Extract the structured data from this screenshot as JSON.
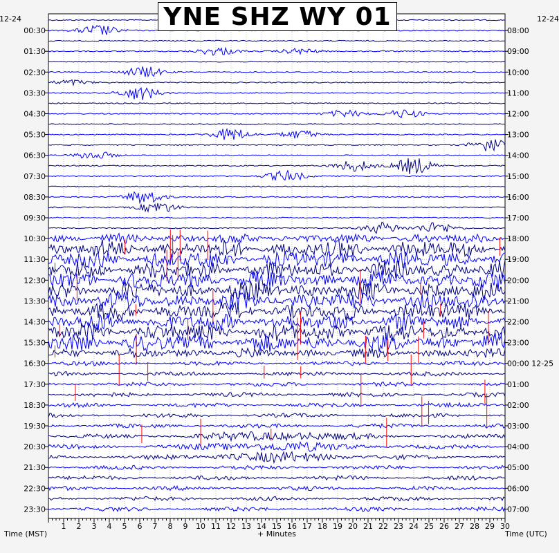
{
  "chart_data": {
    "type": "line",
    "title": "YNE SHZ WY 01",
    "xlabel": "+ Minutes",
    "left_axis_label": "Time (MST)",
    "right_axis_label": "Time (UTC)",
    "x_ticks": [
      "1",
      "2",
      "3",
      "4",
      "5",
      "6",
      "7",
      "8",
      "9",
      "10",
      "11",
      "12",
      "13",
      "14",
      "15",
      "16",
      "17",
      "18",
      "19",
      "20",
      "21",
      "22",
      "23",
      "24",
      "25",
      "26",
      "27",
      "28",
      "29",
      "30"
    ],
    "xlim": [
      0,
      30
    ],
    "left_date": "12-24",
    "right_date": "12-24",
    "left_ticks": [
      "00:30",
      "01:30",
      "02:30",
      "03:30",
      "04:30",
      "05:30",
      "06:30",
      "07:30",
      "08:30",
      "09:30",
      "10:30",
      "11:30",
      "12:30",
      "13:30",
      "14:30",
      "15:30",
      "16:30",
      "17:30",
      "18:30",
      "19:30",
      "20:30",
      "21:30",
      "22:30",
      "23:30"
    ],
    "right_ticks": [
      "08:00",
      "09:00",
      "10:00",
      "11:00",
      "12:00",
      "13:00",
      "14:00",
      "15:00",
      "16:00",
      "17:00",
      "18:00",
      "19:00",
      "20:00",
      "21:00",
      "22:00",
      "23:00",
      "00:00 12-25",
      "01:00",
      "02:00",
      "03:00",
      "04:00",
      "05:00",
      "06:00",
      "07:00"
    ],
    "trace_count": 48,
    "trace_colors": [
      "#000080",
      "#0000ff"
    ],
    "clip_color": "#ff0000",
    "grid": true
  }
}
